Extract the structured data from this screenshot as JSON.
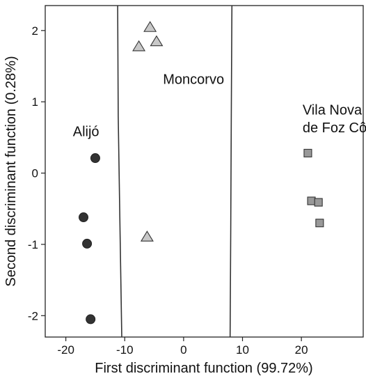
{
  "chart_data": {
    "type": "scatter",
    "xlabel": "First discriminant function (99.72%)",
    "ylabel": "Second discriminant function (0.28%)",
    "xlim": [
      -23.5,
      30.5
    ],
    "ylim": [
      -2.3,
      2.35
    ],
    "xticks": [
      -20,
      -10,
      0,
      10,
      20
    ],
    "yticks": [
      -2,
      -1,
      0,
      1,
      2
    ],
    "xtick_labels": [
      "-20",
      "-10",
      "0",
      "10",
      "20"
    ],
    "ytick_labels": [
      "-2",
      "-1",
      "0",
      "1",
      "2"
    ],
    "grid": false,
    "legend": "none",
    "series": [
      {
        "marker": "circle",
        "color": "#333333",
        "points": [
          [
            -15,
            0.21
          ],
          [
            -17,
            -0.62
          ],
          [
            -16.4,
            -0.99
          ],
          [
            -15.8,
            -2.05
          ]
        ]
      },
      {
        "marker": "triangle",
        "color": "#c8c8c8",
        "points": [
          [
            -5.7,
            2.04
          ],
          [
            -4.6,
            1.84
          ],
          [
            -7.6,
            1.77
          ],
          [
            -6.2,
            -0.9
          ]
        ]
      },
      {
        "marker": "square",
        "color": "#999999",
        "points": [
          [
            21.1,
            0.28
          ],
          [
            21.7,
            -0.39
          ],
          [
            22.9,
            -0.41
          ],
          [
            23.1,
            -0.7
          ]
        ]
      }
    ],
    "boundaries": [
      {
        "points": [
          [
            -11.2,
            2.35
          ],
          [
            -11.1,
            0.8
          ],
          [
            -10.8,
            -0.8
          ],
          [
            -10.5,
            -2.3
          ]
        ]
      },
      {
        "points": [
          [
            8.2,
            2.35
          ],
          [
            8.1,
            0.8
          ],
          [
            8.0,
            -0.8
          ],
          [
            7.9,
            -2.3
          ]
        ]
      }
    ],
    "annotations": [
      {
        "text": "Moncorvo",
        "x": -3.5,
        "y": 1.25
      },
      {
        "text": "Alijó",
        "x": -18.8,
        "y": 0.52
      },
      {
        "text": "Vila Nova",
        "x": 20.2,
        "y": 0.82
      },
      {
        "text": "de Foz Côa",
        "x": 20.2,
        "y": 0.57
      }
    ]
  }
}
